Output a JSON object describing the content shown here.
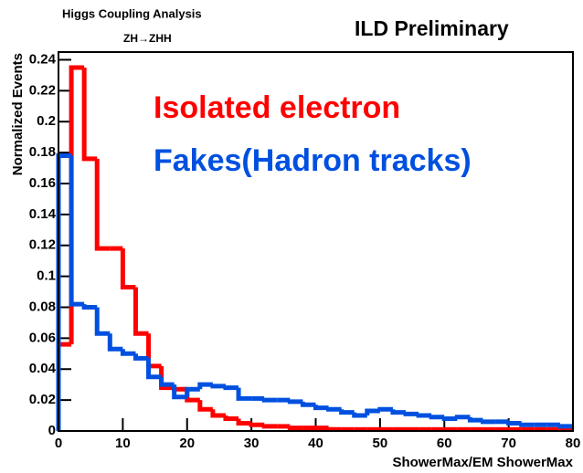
{
  "chart_data": {
    "type": "histogram",
    "title": "ILD Preliminary",
    "annotations": [
      "Higgs Coupling Analysis",
      "ZH→ZHH"
    ],
    "x_label": "ShowerMax/EM ShowerMax",
    "y_label": "Normalized Events",
    "bins": [
      0,
      2,
      4,
      6,
      8,
      10,
      12,
      14,
      16,
      18,
      20,
      22,
      24,
      26,
      28,
      30,
      32,
      34,
      36,
      38,
      40,
      42,
      44,
      46,
      48,
      50,
      52,
      54,
      56,
      58,
      60,
      62,
      64,
      66,
      68,
      70,
      72,
      74,
      76,
      78,
      80
    ],
    "series": [
      {
        "name": "Isolated electron",
        "color": "#ff0000",
        "values": [
          0.056,
          0.235,
          0.176,
          0.118,
          0.118,
          0.093,
          0.063,
          0.042,
          0.028,
          0.027,
          0.02,
          0.014,
          0.01,
          0.008,
          0.005,
          0.004,
          0.003,
          0.003,
          0.002,
          0.002,
          0.002,
          0.001,
          0.001,
          0.001,
          0.001,
          0.001,
          0.001,
          0.001,
          0.001,
          0.001,
          0.001,
          0.001,
          0.001,
          0.001,
          0.001,
          0.001,
          0.001,
          0.001,
          0.001,
          0.001
        ]
      },
      {
        "name": "Fakes(Hadron tracks)",
        "color": "#0050e0",
        "values": [
          0.178,
          0.082,
          0.08,
          0.063,
          0.053,
          0.05,
          0.047,
          0.035,
          0.03,
          0.022,
          0.027,
          0.03,
          0.029,
          0.028,
          0.021,
          0.021,
          0.02,
          0.02,
          0.019,
          0.017,
          0.015,
          0.014,
          0.012,
          0.01,
          0.013,
          0.014,
          0.012,
          0.011,
          0.01,
          0.009,
          0.008,
          0.009,
          0.007,
          0.006,
          0.006,
          0.005,
          0.004,
          0.004,
          0.004,
          0.003
        ]
      }
    ],
    "xlim": [
      0,
      80
    ],
    "xticks": [
      0,
      10,
      20,
      30,
      40,
      50,
      60,
      70,
      80
    ],
    "ylim": [
      0,
      0.245
    ],
    "yticks": [
      0,
      0.02,
      0.04,
      0.06,
      0.08,
      0.1,
      0.12,
      0.14,
      0.16,
      0.18,
      0.2,
      0.22,
      0.24
    ]
  }
}
